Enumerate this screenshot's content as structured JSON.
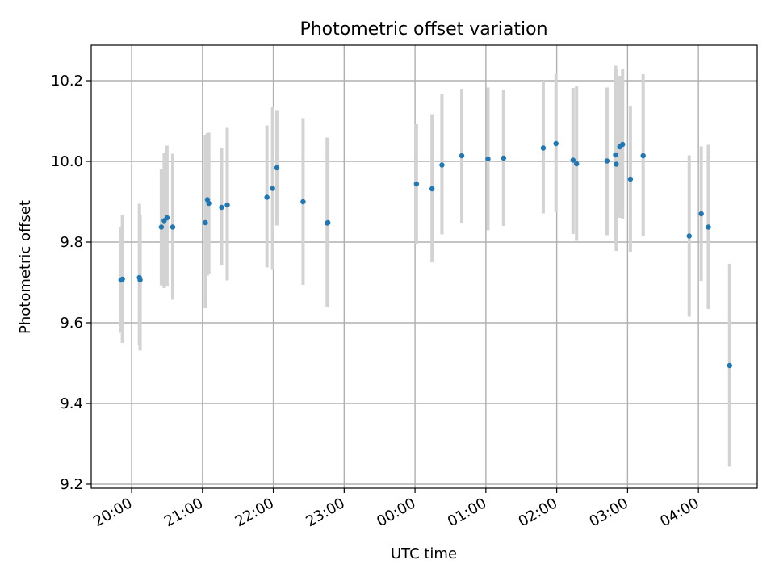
{
  "chart_data": {
    "type": "scatter",
    "title": "Photometric offset variation",
    "xlabel": "UTC time",
    "ylabel": "Photometric offset",
    "xlim_hours": [
      19.43,
      28.83
    ],
    "ylim": [
      9.19,
      10.288
    ],
    "grid": true,
    "x_tick_hours": [
      20,
      21,
      22,
      23,
      24,
      25,
      26,
      27,
      28
    ],
    "x_tick_labels": [
      "20:00",
      "21:00",
      "22:00",
      "23:00",
      "00:00",
      "01:00",
      "02:00",
      "03:00",
      "04:00"
    ],
    "y_ticks": [
      9.2,
      9.4,
      9.6,
      9.8,
      10.0,
      10.2
    ],
    "y_tick_labels": [
      "9.2",
      "9.4",
      "9.6",
      "9.8",
      "10.0",
      "10.2"
    ],
    "colors": {
      "point": "#1f77b4",
      "errorbar": "#d3d3d3",
      "grid": "#b0b0b0"
    },
    "series": [
      {
        "points": [
          {
            "t": 19.85,
            "y": 9.706,
            "lo": 9.575,
            "hi": 9.838
          },
          {
            "t": 19.87,
            "y": 9.708,
            "lo": 9.55,
            "hi": 9.866
          },
          {
            "t": 20.11,
            "y": 9.712,
            "lo": 9.545,
            "hi": 9.895
          },
          {
            "t": 20.12,
            "y": 9.706,
            "lo": 9.531,
            "hi": 9.868
          },
          {
            "t": 20.42,
            "y": 9.837,
            "lo": 9.693,
            "hi": 9.98
          },
          {
            "t": 20.46,
            "y": 9.853,
            "lo": 9.686,
            "hi": 10.02
          },
          {
            "t": 20.5,
            "y": 9.86,
            "lo": 9.69,
            "hi": 10.039
          },
          {
            "t": 20.58,
            "y": 9.837,
            "lo": 9.657,
            "hi": 10.019
          },
          {
            "t": 21.04,
            "y": 9.848,
            "lo": 9.636,
            "hi": 10.066
          },
          {
            "t": 21.07,
            "y": 9.905,
            "lo": 9.717,
            "hi": 10.07
          },
          {
            "t": 21.09,
            "y": 9.896,
            "lo": 9.72,
            "hi": 10.071
          },
          {
            "t": 21.27,
            "y": 9.886,
            "lo": 9.742,
            "hi": 10.034
          },
          {
            "t": 21.35,
            "y": 9.892,
            "lo": 9.705,
            "hi": 10.083
          },
          {
            "t": 21.91,
            "y": 9.911,
            "lo": 9.737,
            "hi": 10.089
          },
          {
            "t": 21.99,
            "y": 9.933,
            "lo": 9.733,
            "hi": 10.136
          },
          {
            "t": 22.05,
            "y": 9.984,
            "lo": 9.841,
            "hi": 10.127
          },
          {
            "t": 22.42,
            "y": 9.9,
            "lo": 9.694,
            "hi": 10.107
          },
          {
            "t": 22.76,
            "y": 9.847,
            "lo": 9.638,
            "hi": 10.059
          },
          {
            "t": 22.77,
            "y": 9.848,
            "lo": 9.641,
            "hi": 10.055
          },
          {
            "t": 24.02,
            "y": 9.944,
            "lo": 9.796,
            "hi": 10.092
          },
          {
            "t": 24.24,
            "y": 9.932,
            "lo": 9.75,
            "hi": 10.117
          },
          {
            "t": 24.38,
            "y": 9.991,
            "lo": 9.819,
            "hi": 10.167
          },
          {
            "t": 24.66,
            "y": 10.014,
            "lo": 9.848,
            "hi": 10.18
          },
          {
            "t": 25.03,
            "y": 10.006,
            "lo": 9.829,
            "hi": 10.183
          },
          {
            "t": 25.25,
            "y": 10.008,
            "lo": 9.84,
            "hi": 10.177
          },
          {
            "t": 25.81,
            "y": 10.033,
            "lo": 9.871,
            "hi": 10.2
          },
          {
            "t": 25.99,
            "y": 10.044,
            "lo": 9.874,
            "hi": 10.217
          },
          {
            "t": 26.23,
            "y": 10.003,
            "lo": 9.82,
            "hi": 10.182
          },
          {
            "t": 26.28,
            "y": 9.994,
            "lo": 9.803,
            "hi": 10.186
          },
          {
            "t": 26.71,
            "y": 10.001,
            "lo": 9.817,
            "hi": 10.183
          },
          {
            "t": 26.83,
            "y": 10.016,
            "lo": 9.796,
            "hi": 10.237
          },
          {
            "t": 26.84,
            "y": 9.993,
            "lo": 9.778,
            "hi": 10.23
          },
          {
            "t": 26.89,
            "y": 10.036,
            "lo": 9.86,
            "hi": 10.212
          },
          {
            "t": 26.93,
            "y": 10.042,
            "lo": 9.857,
            "hi": 10.229
          },
          {
            "t": 27.04,
            "y": 9.956,
            "lo": 9.776,
            "hi": 10.138
          },
          {
            "t": 27.22,
            "y": 10.014,
            "lo": 9.814,
            "hi": 10.216
          },
          {
            "t": 27.87,
            "y": 9.815,
            "lo": 9.615,
            "hi": 10.015
          },
          {
            "t": 28.04,
            "y": 9.87,
            "lo": 9.704,
            "hi": 10.037
          },
          {
            "t": 28.14,
            "y": 9.837,
            "lo": 9.634,
            "hi": 10.041
          },
          {
            "t": 28.44,
            "y": 9.494,
            "lo": 9.243,
            "hi": 9.746
          }
        ]
      }
    ]
  }
}
